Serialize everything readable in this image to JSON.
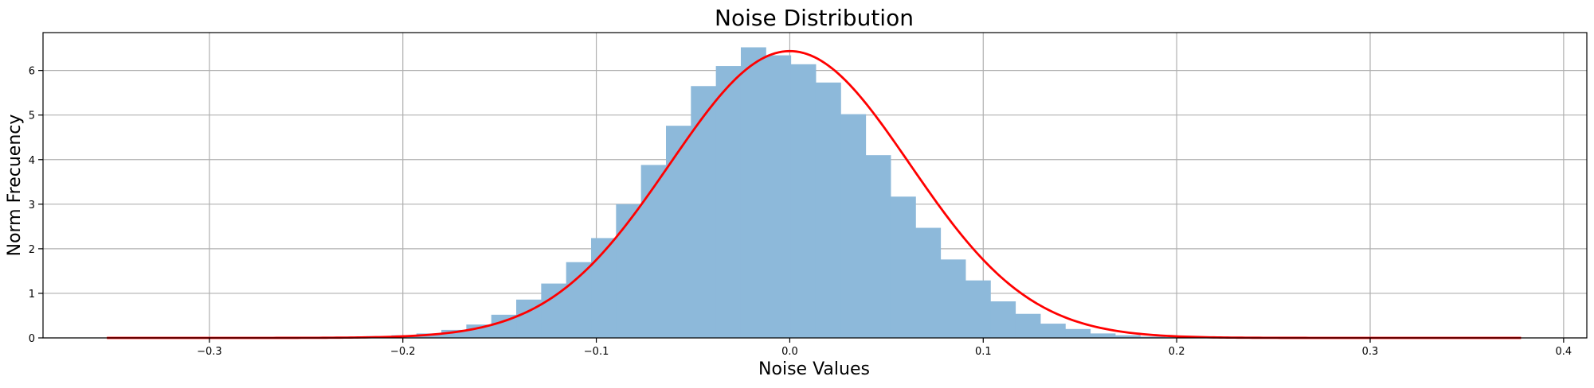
{
  "chart_data": {
    "type": "bar",
    "title": "Noise Distribution",
    "xlabel": "Noise Values",
    "ylabel": "Norm Frecuency",
    "xlim": [
      -0.386,
      0.412
    ],
    "ylim": [
      0,
      6.85
    ],
    "xticks": [
      -0.3,
      -0.2,
      -0.1,
      0.0,
      0.1,
      0.2,
      0.3,
      0.4
    ],
    "xtick_labels": [
      "−0.3",
      "−0.2",
      "−0.1",
      "0.0",
      "0.1",
      "0.2",
      "0.3",
      "0.4"
    ],
    "yticks": [
      0,
      1,
      2,
      3,
      4,
      5,
      6
    ],
    "ytick_labels": [
      "0",
      "1",
      "2",
      "3",
      "4",
      "5",
      "6"
    ],
    "grid": true,
    "histogram": {
      "color": "#8db9da",
      "bin_edges": [
        -0.2575,
        -0.2446,
        -0.2317,
        -0.2188,
        -0.2059,
        -0.193,
        -0.1801,
        -0.1672,
        -0.1543,
        -0.1414,
        -0.1285,
        -0.1156,
        -0.1027,
        -0.0898,
        -0.0769,
        -0.064,
        -0.0511,
        -0.0382,
        -0.0253,
        -0.0124,
        0.0005,
        0.0134,
        0.0263,
        0.0392,
        0.0521,
        0.065,
        0.0779,
        0.0908,
        0.1037,
        0.1166,
        0.1295,
        0.1424,
        0.1553,
        0.1682,
        0.1811,
        0.194,
        0.2069,
        0.2198
      ],
      "values": [
        0.01,
        0.01,
        0.02,
        0.04,
        0.06,
        0.1,
        0.18,
        0.3,
        0.52,
        0.86,
        1.22,
        1.7,
        2.24,
        3.0,
        3.88,
        4.76,
        5.65,
        6.1,
        6.52,
        6.34,
        6.14,
        5.73,
        5.02,
        4.1,
        3.17,
        2.47,
        1.76,
        1.29,
        0.82,
        0.54,
        0.32,
        0.2,
        0.1,
        0.06,
        0.03,
        0.02,
        0.01
      ]
    },
    "fit_curve": {
      "type": "normal_pdf",
      "color": "#ff0000",
      "mean": 0.0,
      "std": 0.062,
      "x_range": [
        -0.353,
        0.378
      ]
    }
  }
}
